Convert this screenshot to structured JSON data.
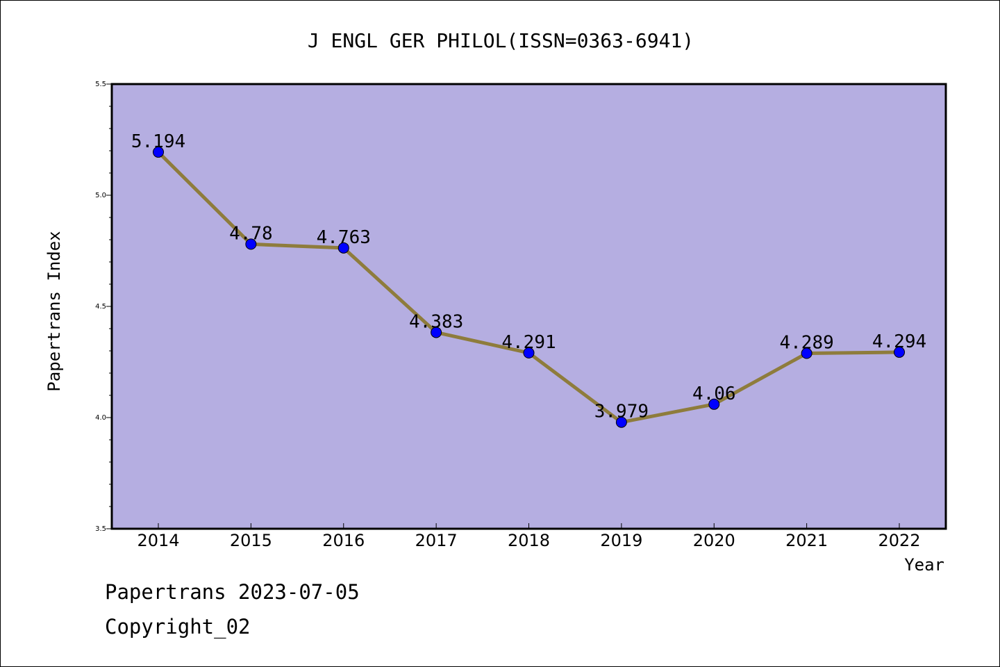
{
  "colors": {
    "plot_background": "#b5aee1",
    "line": "#8e7c3c",
    "marker": "#0000ff",
    "axis": "#000000"
  },
  "chart_data": {
    "type": "line",
    "title": "J ENGL GER PHILOL(ISSN=0363-6941)",
    "xlabel": "Year",
    "ylabel": "Papertrans Index",
    "categories": [
      "2014",
      "2015",
      "2016",
      "2017",
      "2018",
      "2019",
      "2020",
      "2021",
      "2022"
    ],
    "series": [
      {
        "values": [
          5.194,
          4.78,
          4.763,
          4.383,
          4.291,
          3.979,
          4.06,
          4.289,
          4.294
        ]
      }
    ],
    "data_labels": [
      "5.194",
      "4.78",
      "4.763",
      "4.383",
      "4.291",
      "3.979",
      "4.06",
      "4.289",
      "4.294"
    ],
    "ylim": [
      3.5,
      5.5
    ],
    "yticks": [
      "3.5",
      "4.0",
      "4.5",
      "5.0",
      "5.5"
    ],
    "grid": false,
    "legend": "none"
  },
  "footer": {
    "line1": "Papertrans 2023-07-05",
    "line2": "Copyright_02"
  }
}
